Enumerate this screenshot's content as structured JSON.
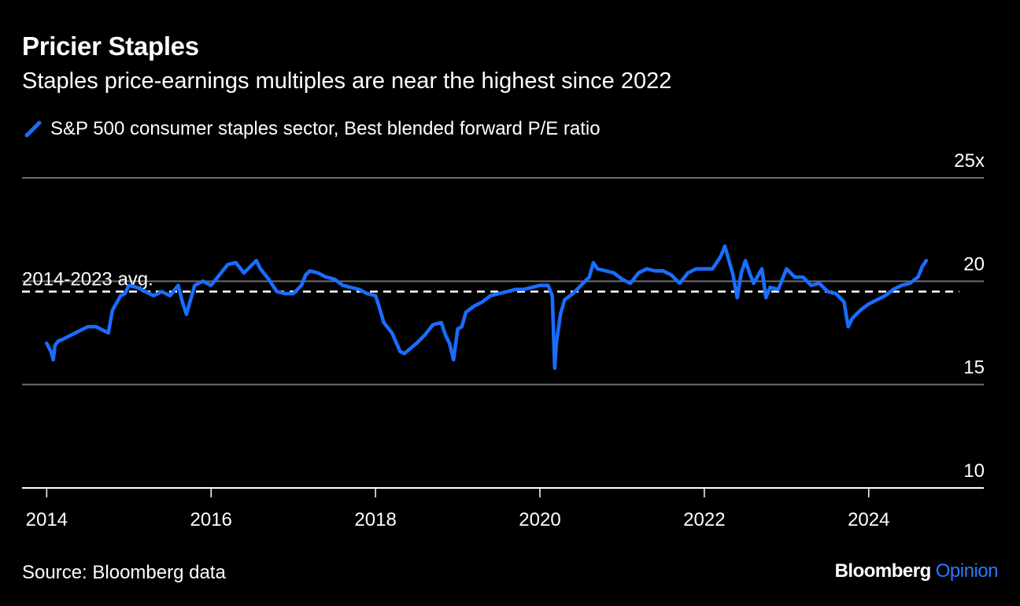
{
  "header": {
    "title": "Pricier Staples",
    "subtitle": "Staples price-earnings multiples are near the highest since 2022"
  },
  "footer": {
    "source": "Source: Bloomberg data",
    "brand_primary": "Bloomberg",
    "brand_secondary": "Opinion"
  },
  "colors": {
    "background": "#000000",
    "series": "#1a6dff",
    "grid": "#6e6e6e",
    "axis": "#ffffff",
    "text": "#ffffff",
    "brand_accent": "#2a7bff"
  },
  "chart_data": {
    "type": "line",
    "title": "Pricier Staples",
    "subtitle": "Staples price-earnings multiples are near the highest since 2022",
    "xlabel": "",
    "ylabel": "",
    "xlim": [
      2013.7,
      2025.4
    ],
    "ylim": [
      10,
      25
    ],
    "x_ticks": [
      2014,
      2016,
      2018,
      2020,
      2022,
      2024
    ],
    "x_tick_labels": [
      "2014",
      "2016",
      "2018",
      "2020",
      "2022",
      "2024"
    ],
    "y_ticks": [
      10,
      15,
      20,
      25
    ],
    "y_tick_labels": [
      "10",
      "15",
      "20",
      "25x"
    ],
    "grid": "horizontal",
    "legend_position": "top-left",
    "reference_line": {
      "label": "2014-2023 avg.",
      "value": 19.5,
      "x_start": 2013.7,
      "x_end": 2025.1,
      "style": "dashed"
    },
    "series": [
      {
        "name": "S&P 500 consumer staples sector, Best blended forward P/E ratio",
        "x": [
          2014.0,
          2014.05,
          2014.08,
          2014.1,
          2014.14,
          2014.2,
          2014.3,
          2014.4,
          2014.5,
          2014.6,
          2014.7,
          2014.75,
          2014.8,
          2014.9,
          2014.95,
          2015.0,
          2015.1,
          2015.2,
          2015.3,
          2015.4,
          2015.5,
          2015.6,
          2015.65,
          2015.7,
          2015.8,
          2015.9,
          2016.0,
          2016.1,
          2016.2,
          2016.3,
          2016.4,
          2016.5,
          2016.55,
          2016.6,
          2016.7,
          2016.8,
          2016.9,
          2017.0,
          2017.1,
          2017.15,
          2017.2,
          2017.3,
          2017.4,
          2017.5,
          2017.6,
          2017.7,
          2017.8,
          2017.9,
          2018.0,
          2018.05,
          2018.1,
          2018.2,
          2018.3,
          2018.35,
          2018.5,
          2018.6,
          2018.7,
          2018.8,
          2018.85,
          2018.9,
          2018.95,
          2019.0,
          2019.05,
          2019.1,
          2019.2,
          2019.3,
          2019.4,
          2019.5,
          2019.6,
          2019.7,
          2019.8,
          2019.9,
          2020.0,
          2020.1,
          2020.15,
          2020.18,
          2020.2,
          2020.25,
          2020.3,
          2020.4,
          2020.5,
          2020.6,
          2020.65,
          2020.7,
          2020.8,
          2020.9,
          2021.0,
          2021.1,
          2021.2,
          2021.3,
          2021.4,
          2021.5,
          2021.6,
          2021.7,
          2021.8,
          2021.9,
          2022.0,
          2022.1,
          2022.2,
          2022.25,
          2022.3,
          2022.35,
          2022.4,
          2022.45,
          2022.5,
          2022.55,
          2022.6,
          2022.7,
          2022.75,
          2022.8,
          2022.9,
          2023.0,
          2023.1,
          2023.2,
          2023.3,
          2023.4,
          2023.5,
          2023.6,
          2023.7,
          2023.75,
          2023.8,
          2023.9,
          2024.0,
          2024.1,
          2024.2,
          2024.3,
          2024.4,
          2024.5,
          2024.6,
          2024.65,
          2024.7
        ],
        "values": [
          17.0,
          16.6,
          16.2,
          16.9,
          17.1,
          17.2,
          17.4,
          17.6,
          17.8,
          17.8,
          17.6,
          17.5,
          18.6,
          19.3,
          19.4,
          19.8,
          19.7,
          19.5,
          19.3,
          19.5,
          19.3,
          19.8,
          19.0,
          18.4,
          19.8,
          20.0,
          19.8,
          20.3,
          20.8,
          20.9,
          20.4,
          20.8,
          21.0,
          20.6,
          20.1,
          19.5,
          19.4,
          19.4,
          19.8,
          20.3,
          20.5,
          20.4,
          20.2,
          20.1,
          19.8,
          19.7,
          19.6,
          19.4,
          19.3,
          18.7,
          18.0,
          17.5,
          16.6,
          16.5,
          17.0,
          17.4,
          17.9,
          18.0,
          17.4,
          17.0,
          16.2,
          17.7,
          17.8,
          18.5,
          18.8,
          19.0,
          19.3,
          19.4,
          19.5,
          19.6,
          19.6,
          19.7,
          19.8,
          19.8,
          19.3,
          15.8,
          17.0,
          18.4,
          19.1,
          19.4,
          19.8,
          20.2,
          20.9,
          20.6,
          20.5,
          20.4,
          20.1,
          19.9,
          20.4,
          20.6,
          20.5,
          20.5,
          20.3,
          19.9,
          20.4,
          20.6,
          20.6,
          20.6,
          21.2,
          21.7,
          21.0,
          20.3,
          19.2,
          20.4,
          21.0,
          20.4,
          19.9,
          20.6,
          19.2,
          19.7,
          19.6,
          20.6,
          20.2,
          20.2,
          19.8,
          19.9,
          19.5,
          19.4,
          19.0,
          17.8,
          18.2,
          18.6,
          18.9,
          19.1,
          19.3,
          19.6,
          19.8,
          19.9,
          20.2,
          20.7,
          21.0
        ]
      }
    ]
  }
}
